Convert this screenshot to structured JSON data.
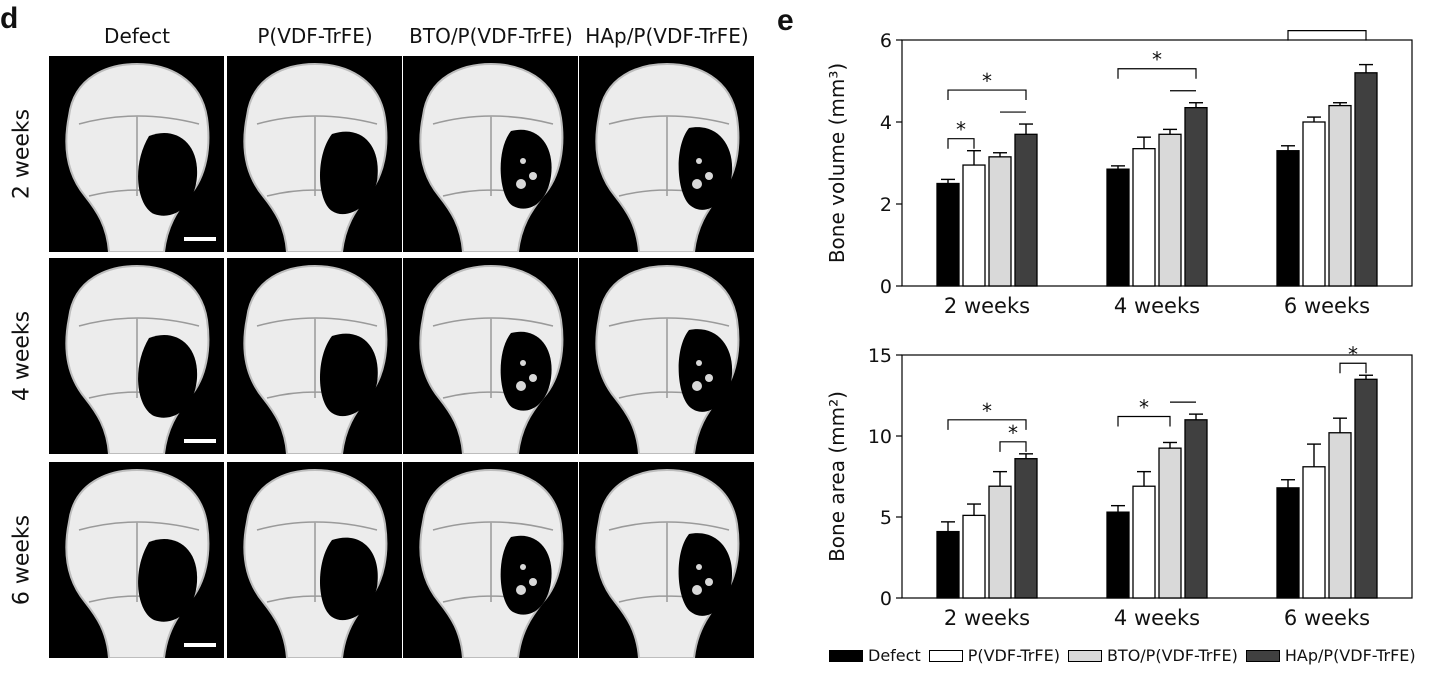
{
  "panel_labels": {
    "left": "d",
    "right": "e"
  },
  "images": {
    "column_headers": [
      "Defect",
      "P(VDF-TrFE)",
      "BTO/P(VDF-TrFE)",
      "HAp/P(VDF-TrFE)"
    ],
    "row_headers": [
      "2 weeks",
      "4 weeks",
      "6 weeks"
    ]
  },
  "legend": [
    {
      "label": "Defect",
      "color": "#000000"
    },
    {
      "label": "P(VDF-TrFE)",
      "color": "#ffffff"
    },
    {
      "label": "BTO/P(VDF-TrFE)",
      "color": "#d9d9d9"
    },
    {
      "label": "HAp/P(VDF-TrFE)",
      "color": "#404040"
    }
  ],
  "chart_data": [
    {
      "type": "bar",
      "ylabel": "Bone volume (mm³)",
      "ylim": [
        0,
        6
      ],
      "yticks": [
        "0",
        "2",
        "4",
        "6"
      ],
      "categories": [
        "2 weeks",
        "4 weeks",
        "6 weeks"
      ],
      "series": [
        {
          "name": "Defect",
          "values": [
            2.5,
            2.85,
            3.3
          ],
          "errors": [
            0.1,
            0.08,
            0.12
          ]
        },
        {
          "name": "P(VDF-TrFE)",
          "values": [
            2.95,
            3.35,
            4.0
          ],
          "errors": [
            0.35,
            0.28,
            0.12
          ]
        },
        {
          "name": "BTO/P(VDF-TrFE)",
          "values": [
            3.15,
            3.7,
            4.4
          ],
          "errors": [
            0.1,
            0.12,
            0.07
          ]
        },
        {
          "name": "HAp/P(VDF-TrFE)",
          "values": [
            3.7,
            4.35,
            5.2
          ],
          "errors": [
            0.25,
            0.12,
            0.2
          ]
        }
      ],
      "significance": [
        {
          "group": 0,
          "from": 0,
          "to": 1,
          "label": "*"
        },
        {
          "group": 0,
          "from": 0,
          "to": 3,
          "label": "*"
        },
        {
          "group": 0,
          "from": 2,
          "to": 3,
          "label": ""
        },
        {
          "group": 1,
          "from": 0,
          "to": 3,
          "label": "*"
        },
        {
          "group": 1,
          "from": 2,
          "to": 3,
          "label": ""
        },
        {
          "group": 2,
          "from": 0,
          "to": 3,
          "label": "*"
        }
      ]
    },
    {
      "type": "bar",
      "ylabel": "Bone area (mm²)",
      "ylim": [
        0,
        15
      ],
      "yticks": [
        "0",
        "5",
        "10",
        "15"
      ],
      "categories": [
        "2 weeks",
        "4 weeks",
        "6 weeks"
      ],
      "series": [
        {
          "name": "Defect",
          "values": [
            4.1,
            5.3,
            6.8
          ],
          "errors": [
            0.6,
            0.4,
            0.5
          ]
        },
        {
          "name": "P(VDF-TrFE)",
          "values": [
            5.1,
            6.9,
            8.1
          ],
          "errors": [
            0.7,
            0.9,
            1.4
          ]
        },
        {
          "name": "BTO/P(VDF-TrFE)",
          "values": [
            6.9,
            9.25,
            10.2
          ],
          "errors": [
            0.9,
            0.35,
            0.9
          ]
        },
        {
          "name": "HAp/P(VDF-TrFE)",
          "values": [
            8.6,
            11.0,
            13.5
          ],
          "errors": [
            0.3,
            0.35,
            0.25
          ]
        }
      ],
      "significance": [
        {
          "group": 0,
          "from": 0,
          "to": 3,
          "label": "*"
        },
        {
          "group": 0,
          "from": 2,
          "to": 3,
          "label": "*"
        },
        {
          "group": 1,
          "from": 0,
          "to": 2,
          "label": "*"
        },
        {
          "group": 1,
          "from": 2,
          "to": 3,
          "label": ""
        },
        {
          "group": 2,
          "from": 2,
          "to": 3,
          "label": "*"
        }
      ]
    }
  ]
}
